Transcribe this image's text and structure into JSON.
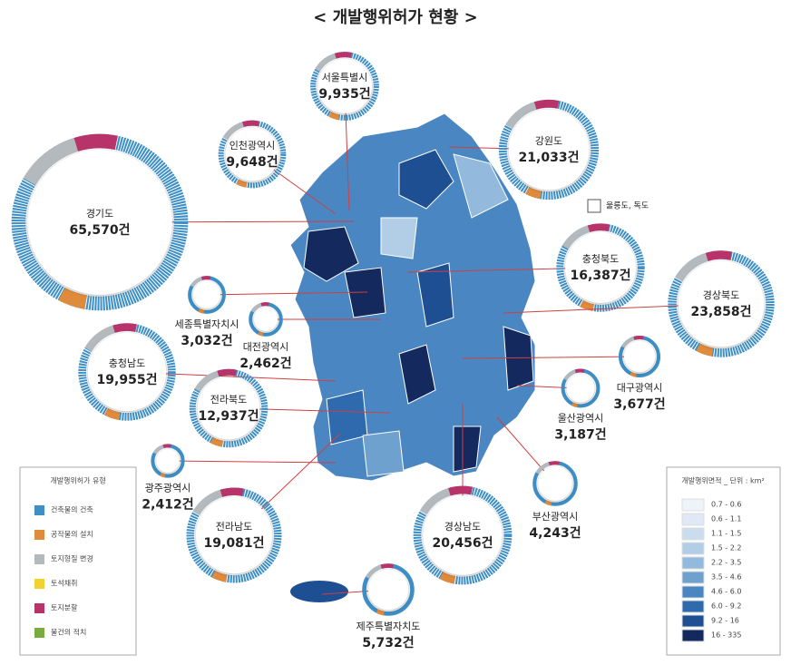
{
  "title": "< 개발행위허가 현황 >",
  "note": "울릉도, 독도",
  "regions": [
    {
      "name": "서울특별시",
      "value": 9935,
      "value_label": "9,935건"
    },
    {
      "name": "인천광역시",
      "value": 9648,
      "value_label": "9,648건"
    },
    {
      "name": "경기도",
      "value": 65570,
      "value_label": "65,570건"
    },
    {
      "name": "강원도",
      "value": 21033,
      "value_label": "21,033건"
    },
    {
      "name": "충청북도",
      "value": 16387,
      "value_label": "16,387건"
    },
    {
      "name": "경상북도",
      "value": 23858,
      "value_label": "23,858건"
    },
    {
      "name": "세종특별자치시",
      "value": 3032,
      "value_label": "3,032건"
    },
    {
      "name": "대전광역시",
      "value": 2462,
      "value_label": "2,462건"
    },
    {
      "name": "충청남도",
      "value": 19955,
      "value_label": "19,955건"
    },
    {
      "name": "전라북도",
      "value": 12937,
      "value_label": "12,937건"
    },
    {
      "name": "대구광역시",
      "value": 3677,
      "value_label": "3,677건"
    },
    {
      "name": "울산광역시",
      "value": 3187,
      "value_label": "3,187건"
    },
    {
      "name": "광주광역시",
      "value": 2412,
      "value_label": "2,412건"
    },
    {
      "name": "부산광역시",
      "value": 4243,
      "value_label": "4,243건"
    },
    {
      "name": "전라남도",
      "value": 19081,
      "value_label": "19,081건"
    },
    {
      "name": "경상남도",
      "value": 20456,
      "value_label": "20,456건"
    },
    {
      "name": "제주특별자치도",
      "value": 5732,
      "value_label": "5,732건"
    }
  ],
  "type_legend": {
    "title": "개발행위허가 유형",
    "items": [
      {
        "label": "건축물의 건축",
        "color": "#3d8fc6"
      },
      {
        "label": "공작물의 설치",
        "color": "#e08a3c"
      },
      {
        "label": "토지형질 변경",
        "color": "#b4b9be"
      },
      {
        "label": "토석채취",
        "color": "#f2d22e"
      },
      {
        "label": "토지분할",
        "color": "#b8336a"
      },
      {
        "label": "물건의 적치",
        "color": "#7aab3e"
      }
    ]
  },
  "area_legend": {
    "title": "개발행위면적 _ 단위 : km²",
    "items": [
      {
        "label": "0.7 - 0.6",
        "color": "#eef3fa"
      },
      {
        "label": "0.6 - 1.1",
        "color": "#dfe8f4"
      },
      {
        "label": "1.1 - 1.5",
        "color": "#cbdcee"
      },
      {
        "label": "1.5 - 2.2",
        "color": "#b2cde6"
      },
      {
        "label": "2.2 - 3.5",
        "color": "#93b9dc"
      },
      {
        "label": "3.5 - 4.6",
        "color": "#6fa1cf"
      },
      {
        "label": "4.6 - 6.0",
        "color": "#4a86c1"
      },
      {
        "label": "6.0 - 9.2",
        "color": "#2f6aae"
      },
      {
        "label": "9.2 - 16",
        "color": "#1e4f93"
      },
      {
        "label": "16 - 335",
        "color": "#14295e"
      }
    ]
  }
}
